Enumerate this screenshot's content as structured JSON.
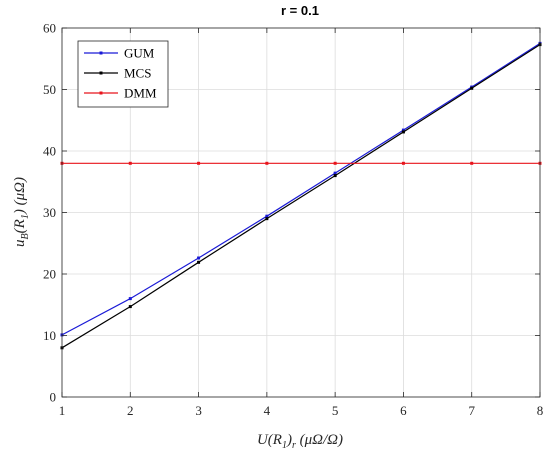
{
  "chart_data": {
    "type": "line",
    "title": "r = 0.1",
    "xlabel": "U(R1)r (μΩ/Ω)",
    "ylabel": "uB(R1) (μΩ)",
    "xlabel_parts": {
      "main": "U(R",
      "sub1": "1",
      "mid": ")",
      "sub2": "r",
      "unit": " (μΩ/Ω)"
    },
    "ylabel_parts": {
      "main": "u",
      "sub1": "B",
      "mid": "(R",
      "sub2": "1",
      "end": ")",
      "unit": " (μΩ)"
    },
    "xlim": [
      1,
      8
    ],
    "ylim": [
      0,
      60
    ],
    "xticks": [
      1,
      2,
      3,
      4,
      5,
      6,
      7,
      8
    ],
    "yticks": [
      0,
      10,
      20,
      30,
      40,
      50,
      60
    ],
    "grid": true,
    "legend_position": "top-left",
    "x": [
      1,
      2,
      3,
      4,
      5,
      6,
      7,
      8
    ],
    "series": [
      {
        "name": "GUM",
        "color": "#1a1ad6",
        "values": [
          10.1,
          16.0,
          22.6,
          29.4,
          36.4,
          43.4,
          50.4,
          57.5
        ]
      },
      {
        "name": "MCS",
        "color": "#000000",
        "values": [
          8.0,
          14.7,
          21.9,
          29.0,
          36.0,
          43.1,
          50.2,
          57.3
        ]
      },
      {
        "name": "DMM",
        "color": "#e8141c",
        "values": [
          38.0,
          38.0,
          38.0,
          38.0,
          38.0,
          38.0,
          38.0,
          38.0
        ]
      }
    ]
  }
}
